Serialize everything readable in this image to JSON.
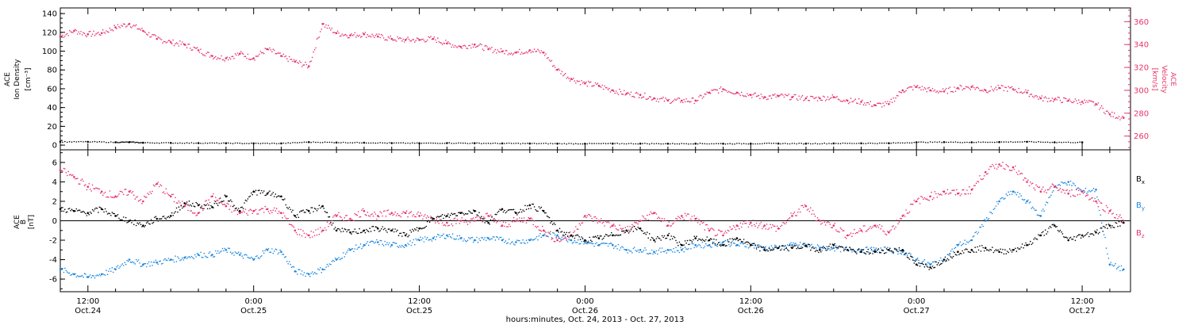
{
  "figure": {
    "xlabel": "hours:minutes, Oct. 24, 2013 - Oct. 27, 2013",
    "x_ticks": [
      {
        "time": "12:00",
        "date": "Oct.24",
        "hour": 12
      },
      {
        "time": "0:00",
        "date": "Oct.25",
        "hour": 24
      },
      {
        "time": "12:00",
        "date": "Oct.25",
        "hour": 36
      },
      {
        "time": "0:00",
        "date": "Oct.26",
        "hour": 48
      },
      {
        "time": "12:00",
        "date": "Oct.26",
        "hour": 60
      },
      {
        "time": "0:00",
        "date": "Oct.27",
        "hour": 72
      },
      {
        "time": "12:00",
        "date": "Oct.27",
        "hour": 84
      }
    ],
    "xlim_hours": [
      10,
      87.5
    ],
    "colors": {
      "black": "#000000",
      "red": "#e8336a",
      "blue": "#1a86e0",
      "axis": "#000000"
    }
  },
  "chart_data": [
    {
      "type": "scatter",
      "panel": "top",
      "ylabel_left": [
        "ACE",
        "Ion Density",
        "[cm⁻³]"
      ],
      "ylabel_right": [
        "ACE",
        "Velocity",
        "[km/s]"
      ],
      "ylim_left": [
        -5,
        146
      ],
      "yticks_left": [
        0,
        20,
        40,
        60,
        80,
        100,
        120,
        140
      ],
      "ylim_right": [
        248,
        372
      ],
      "yticks_right": [
        260,
        280,
        300,
        320,
        340,
        360
      ],
      "series": [
        {
          "name": "",
          "axis": "left",
          "color": "#000000",
          "x": [
            10,
            12,
            14,
            15,
            16,
            18,
            20,
            22,
            24,
            26,
            28,
            30,
            32,
            34,
            36,
            38,
            40,
            42,
            44,
            46,
            48,
            50,
            52,
            54,
            56,
            58,
            60,
            62,
            64,
            66,
            68,
            70,
            72,
            74,
            76,
            78,
            80,
            82,
            84
          ],
          "y": [
            3.5,
            3.5,
            3.0,
            3.2,
            2.5,
            2.3,
            2.2,
            2.0,
            1.8,
            1.8,
            3.2,
            2.8,
            2.6,
            2.2,
            2.0,
            2.2,
            2.0,
            1.8,
            1.7,
            1.6,
            1.5,
            1.6,
            1.6,
            1.5,
            1.6,
            1.5,
            1.6,
            1.7,
            1.6,
            1.8,
            1.9,
            2.0,
            3.0,
            3.2,
            3.0,
            3.3,
            3.5,
            3.0,
            2.9
          ]
        },
        {
          "name": "",
          "axis": "right",
          "color": "#e8336a",
          "x": [
            10,
            11,
            12,
            13,
            14,
            15,
            16,
            17,
            18,
            19,
            20,
            21,
            22,
            23,
            24,
            25,
            26,
            27,
            28,
            29,
            30,
            31,
            32,
            33,
            34,
            35,
            36,
            37,
            38,
            39,
            40,
            41,
            42,
            43,
            44,
            45,
            46,
            47,
            48,
            49,
            50,
            51,
            52,
            53,
            54,
            55,
            56,
            57,
            58,
            59,
            60,
            61,
            62,
            63,
            64,
            65,
            66,
            67,
            68,
            69,
            70,
            71,
            72,
            73,
            74,
            75,
            76,
            77,
            78,
            79,
            80,
            81,
            82,
            83,
            84,
            85,
            86,
            87
          ],
          "y": [
            347,
            352,
            349,
            350,
            355,
            358,
            352,
            345,
            342,
            340,
            335,
            330,
            328,
            332,
            328,
            336,
            330,
            325,
            321,
            358,
            350,
            348,
            349,
            347,
            345,
            344,
            344,
            345,
            341,
            338,
            340,
            336,
            334,
            333,
            335,
            333,
            318,
            310,
            306,
            304,
            300,
            297,
            296,
            293,
            291,
            291,
            291,
            298,
            301,
            298,
            296,
            294,
            295,
            294,
            293,
            293,
            294,
            291,
            290,
            287,
            288,
            300,
            303,
            300,
            299,
            302,
            303,
            300,
            302,
            301,
            298,
            293,
            292,
            291,
            290,
            288,
            279,
            276
          ]
        }
      ]
    },
    {
      "type": "scatter",
      "panel": "bottom",
      "ylabel_left": [
        "ACE",
        "B",
        "[nT]"
      ],
      "ylim": [
        -7.3,
        7.3
      ],
      "yticks": [
        -6,
        -4,
        -2,
        0,
        2,
        4,
        6
      ],
      "series": [
        {
          "name": "Bx",
          "color": "#000000",
          "x": [
            10,
            11,
            12,
            13,
            14,
            15,
            16,
            17,
            18,
            19,
            20,
            21,
            22,
            23,
            24,
            25,
            26,
            27,
            28,
            29,
            30,
            31,
            32,
            33,
            34,
            35,
            36,
            37,
            38,
            39,
            40,
            41,
            42,
            43,
            44,
            45,
            46,
            47,
            48,
            49,
            50,
            51,
            52,
            53,
            54,
            55,
            56,
            57,
            58,
            59,
            60,
            61,
            62,
            63,
            64,
            65,
            66,
            67,
            68,
            69,
            70,
            71,
            72,
            73,
            74,
            75,
            76,
            77,
            78,
            79,
            80,
            81,
            82,
            83,
            84,
            85,
            86,
            87
          ],
          "y": [
            1.2,
            1.0,
            0.8,
            1.2,
            0.5,
            0.0,
            -0.5,
            0.2,
            0.5,
            1.8,
            1.6,
            1.4,
            2.5,
            1.0,
            3.0,
            2.8,
            2.5,
            0.5,
            1.0,
            1.5,
            -1.0,
            -1.2,
            -1.0,
            -0.8,
            -1.0,
            -1.5,
            -0.8,
            0.2,
            0.5,
            0.8,
            1.0,
            -0.2,
            1.2,
            0.8,
            1.6,
            1.0,
            -1.0,
            -1.5,
            -2.0,
            -1.8,
            -1.5,
            -1.0,
            -0.8,
            -2.0,
            -1.5,
            -2.5,
            -1.8,
            -2.0,
            -2.5,
            -1.8,
            -2.5,
            -3.0,
            -2.8,
            -2.8,
            -2.6,
            -3.0,
            -2.5,
            -3.0,
            -3.2,
            -3.2,
            -3.0,
            -3.0,
            -4.5,
            -4.8,
            -4.0,
            -3.2,
            -3.0,
            -2.8,
            -3.2,
            -3.0,
            -2.5,
            -1.5,
            -0.5,
            -2.0,
            -1.5,
            -1.2,
            -0.5,
            -0.2
          ]
        },
        {
          "name": "By",
          "color": "#1a86e0",
          "x": [
            10,
            11,
            12,
            13,
            14,
            15,
            16,
            17,
            18,
            19,
            20,
            21,
            22,
            23,
            24,
            25,
            26,
            27,
            28,
            29,
            30,
            31,
            32,
            33,
            34,
            35,
            36,
            37,
            38,
            39,
            40,
            41,
            42,
            43,
            44,
            45,
            46,
            47,
            48,
            49,
            50,
            51,
            52,
            53,
            54,
            55,
            56,
            57,
            58,
            59,
            60,
            61,
            62,
            63,
            64,
            65,
            66,
            67,
            68,
            69,
            70,
            71,
            72,
            73,
            74,
            75,
            76,
            77,
            78,
            79,
            80,
            81,
            82,
            83,
            84,
            85,
            86,
            87
          ],
          "y": [
            -5.0,
            -5.5,
            -5.8,
            -5.5,
            -5.0,
            -4.0,
            -4.5,
            -4.3,
            -4.0,
            -3.8,
            -3.5,
            -3.5,
            -3.0,
            -3.5,
            -4.0,
            -3.0,
            -3.2,
            -5.2,
            -5.5,
            -5.0,
            -4.0,
            -3.0,
            -2.5,
            -2.2,
            -2.5,
            -2.5,
            -2.0,
            -1.8,
            -1.5,
            -1.8,
            -2.0,
            -1.8,
            -2.0,
            -2.2,
            -2.0,
            -1.5,
            -1.5,
            -2.0,
            -2.2,
            -2.5,
            -2.5,
            -3.0,
            -3.0,
            -3.2,
            -3.0,
            -3.0,
            -2.5,
            -2.5,
            -2.2,
            -2.5,
            -2.5,
            -2.8,
            -2.8,
            -2.5,
            -2.5,
            -2.8,
            -2.8,
            -3.0,
            -3.0,
            -3.0,
            -3.0,
            -3.2,
            -4.0,
            -4.5,
            -4.0,
            -2.5,
            -2.0,
            0.0,
            2.0,
            3.0,
            2.0,
            0.5,
            3.5,
            4.0,
            3.0,
            3.2,
            -4.5,
            -5.0
          ]
        },
        {
          "name": "Bz",
          "color": "#e8336a",
          "x": [
            10,
            11,
            12,
            13,
            14,
            15,
            16,
            17,
            18,
            19,
            20,
            21,
            22,
            23,
            24,
            25,
            26,
            27,
            28,
            29,
            30,
            31,
            32,
            33,
            34,
            35,
            36,
            37,
            38,
            39,
            40,
            41,
            42,
            43,
            44,
            45,
            46,
            47,
            48,
            49,
            50,
            51,
            52,
            53,
            54,
            55,
            56,
            57,
            58,
            59,
            60,
            61,
            62,
            63,
            64,
            65,
            66,
            67,
            68,
            69,
            70,
            71,
            72,
            73,
            74,
            75,
            76,
            77,
            78,
            79,
            80,
            81,
            82,
            83,
            84,
            85,
            86,
            87
          ],
          "y": [
            5.2,
            4.5,
            3.5,
            3.0,
            2.5,
            3.0,
            2.0,
            3.8,
            2.5,
            1.5,
            0.8,
            2.5,
            1.5,
            0.8,
            1.0,
            1.2,
            0.8,
            -1.0,
            -1.5,
            -1.0,
            0.5,
            0.2,
            1.0,
            0.5,
            0.8,
            0.8,
            0.5,
            0.2,
            -0.2,
            0.0,
            0.0,
            0.5,
            -0.5,
            0.0,
            0.2,
            -1.0,
            -2.0,
            -1.5,
            0.5,
            0.0,
            -0.5,
            -1.0,
            0.0,
            0.8,
            -0.5,
            0.5,
            0.2,
            -1.0,
            -1.5,
            -0.5,
            -0.2,
            -0.5,
            -0.8,
            0.5,
            1.5,
            0.0,
            -0.5,
            -1.5,
            -1.0,
            -0.5,
            -1.2,
            0.5,
            2.0,
            2.5,
            3.0,
            2.8,
            3.2,
            5.0,
            5.8,
            5.5,
            4.0,
            3.0,
            3.5,
            2.8,
            3.0,
            2.0,
            1.0,
            0.0
          ]
        }
      ],
      "legend": [
        "Bx",
        "By",
        "Bz"
      ]
    }
  ]
}
